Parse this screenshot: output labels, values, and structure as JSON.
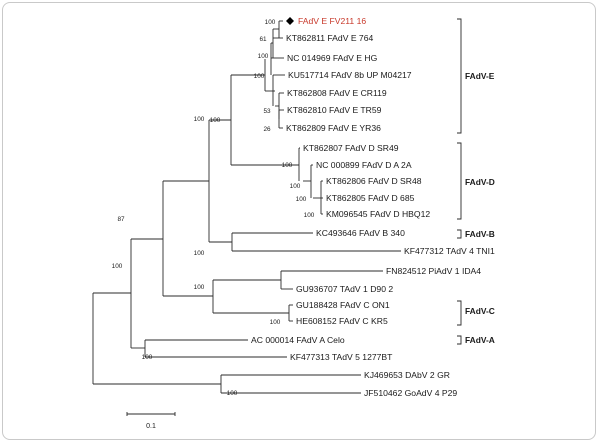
{
  "tree": {
    "taxa": [
      {
        "id": "fv211",
        "label": "FAdV E FV211 16",
        "highlight": true,
        "marker": "diamond"
      },
      {
        "id": "kt764",
        "label": "KT862811 FAdV E 764"
      },
      {
        "id": "nchg",
        "label": "NC 014969 FAdV E HG"
      },
      {
        "id": "ku8b",
        "label": "KU517714 FAdV 8b UP M04217"
      },
      {
        "id": "ktcr",
        "label": "KT862808 FAdV E CR119"
      },
      {
        "id": "kttr",
        "label": "KT862810 FAdV E TR59"
      },
      {
        "id": "ktyr",
        "label": "KT862809 FAdV E YR36"
      },
      {
        "id": "ktsr49",
        "label": "KT862807 FAdV D SR49"
      },
      {
        "id": "nc2a",
        "label": "NC 000899 FAdV D A 2A"
      },
      {
        "id": "ktsr48",
        "label": "KT862806 FAdV D SR48"
      },
      {
        "id": "kt685",
        "label": "KT862805 FAdV D 685"
      },
      {
        "id": "kmhbq",
        "label": "KM096545 FAdV D HBQ12"
      },
      {
        "id": "kc340",
        "label": "KC493646 FAdV B 340"
      },
      {
        "id": "kftni",
        "label": "KF477312 TAdV 4 TNI1"
      },
      {
        "id": "fnida",
        "label": "FN824512 PiAdV 1 IDA4"
      },
      {
        "id": "gud90",
        "label": "GU936707 TAdV 1 D90 2"
      },
      {
        "id": "guon1",
        "label": "GU188428 FAdV C ON1"
      },
      {
        "id": "hekr5",
        "label": "HE608152 FAdV C KR5"
      },
      {
        "id": "acelo",
        "label": "AC 000014 FAdV A Celo"
      },
      {
        "id": "kf1277",
        "label": "KF477313 TAdV 5 1277BT"
      },
      {
        "id": "kjgr",
        "label": "KJ469653 DAbV 2 GR"
      },
      {
        "id": "jfp29",
        "label": "JF510462 GoAdV 4 P29"
      }
    ],
    "bootstrap": [
      "100",
      "61",
      "100",
      "100",
      "53",
      "26",
      "100",
      "100",
      "100",
      "100",
      "100",
      "87",
      "100",
      "100",
      "100",
      "100",
      "100"
    ],
    "clades": [
      {
        "id": "e",
        "label": "FAdV-E"
      },
      {
        "id": "d",
        "label": "FAdV-D"
      },
      {
        "id": "b",
        "label": "FAdV-B"
      },
      {
        "id": "c",
        "label": "FAdV-C"
      },
      {
        "id": "a",
        "label": "FAdV-A"
      }
    ],
    "scale_bar": {
      "label": "0.1",
      "value": 0.1
    },
    "colors": {
      "highlight": "#c8392b",
      "lines": "#2b2b2b"
    }
  }
}
